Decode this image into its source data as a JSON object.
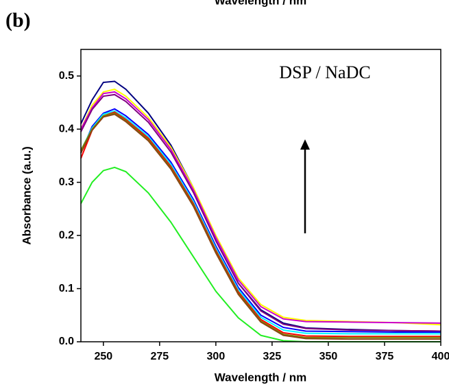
{
  "chart_data": {
    "type": "line",
    "top_caption": "Wavelength / nm",
    "panel_label": "(b)",
    "annotation": "DSP / NaDC",
    "xlabel": "Wavelength / nm",
    "ylabel": "Absorbance (a.u.)",
    "x": [
      240,
      245,
      250,
      255,
      260,
      270,
      280,
      290,
      300,
      310,
      320,
      330,
      340,
      360,
      380,
      400
    ],
    "xlim": [
      240,
      400
    ],
    "xticks": [
      250,
      275,
      300,
      325,
      350,
      375,
      400
    ],
    "ylim": [
      0,
      0.55
    ],
    "yticks": [
      {
        "value": 0,
        "label": "0.0"
      },
      0.1,
      0.2,
      0.3,
      0.4,
      0.5
    ],
    "series": [
      {
        "color": "#000080",
        "values": [
          0.41,
          0.455,
          0.488,
          0.49,
          0.475,
          0.43,
          0.37,
          0.29,
          0.19,
          0.11,
          0.06,
          0.035,
          0.026,
          0.023,
          0.021,
          0.02
        ]
      },
      {
        "color": "#ffff00",
        "values": [
          0.4,
          0.445,
          0.47,
          0.475,
          0.462,
          0.422,
          0.366,
          0.29,
          0.2,
          0.12,
          0.07,
          0.046,
          0.04,
          0.038,
          0.036,
          0.032
        ]
      },
      {
        "color": "#cc00cc",
        "values": [
          0.4,
          0.44,
          0.467,
          0.47,
          0.457,
          0.418,
          0.362,
          0.286,
          0.196,
          0.116,
          0.066,
          0.043,
          0.038,
          0.037,
          0.036,
          0.035
        ]
      },
      {
        "color": "#800080",
        "values": [
          0.395,
          0.437,
          0.462,
          0.465,
          0.452,
          0.413,
          0.357,
          0.281,
          0.19,
          0.11,
          0.058,
          0.033,
          0.025,
          0.022,
          0.021,
          0.02
        ]
      },
      {
        "color": "#0000ff",
        "values": [
          0.355,
          0.405,
          0.43,
          0.438,
          0.425,
          0.39,
          0.338,
          0.268,
          0.18,
          0.102,
          0.05,
          0.027,
          0.02,
          0.019,
          0.018,
          0.018
        ]
      },
      {
        "color": "#00ffff",
        "values": [
          0.36,
          0.402,
          0.428,
          0.434,
          0.421,
          0.386,
          0.334,
          0.264,
          0.176,
          0.098,
          0.046,
          0.022,
          0.016,
          0.015,
          0.015,
          0.015
        ]
      },
      {
        "color": "#ff0000",
        "values": [
          0.345,
          0.398,
          0.425,
          0.432,
          0.418,
          0.383,
          0.33,
          0.26,
          0.172,
          0.094,
          0.042,
          0.017,
          0.011,
          0.01,
          0.01,
          0.01
        ]
      },
      {
        "color": "#808000",
        "values": [
          0.36,
          0.4,
          0.425,
          0.43,
          0.416,
          0.38,
          0.327,
          0.257,
          0.169,
          0.091,
          0.039,
          0.014,
          0.008,
          0.008,
          0.008,
          0.008
        ]
      },
      {
        "color": "#8b4513",
        "values": [
          0.355,
          0.398,
          0.423,
          0.428,
          0.414,
          0.378,
          0.325,
          0.255,
          0.167,
          0.089,
          0.037,
          0.012,
          0.006,
          0.005,
          0.005,
          0.005
        ]
      },
      {
        "color": "#22ee22",
        "values": [
          0.26,
          0.3,
          0.322,
          0.328,
          0.32,
          0.28,
          0.225,
          0.16,
          0.095,
          0.045,
          0.012,
          0.002,
          0,
          0,
          0,
          0
        ]
      }
    ]
  }
}
